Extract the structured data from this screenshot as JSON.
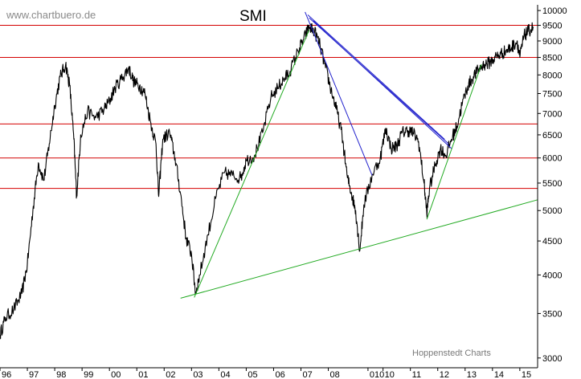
{
  "watermark": "www.chartbuero.de",
  "credit": "Hoppenstedt Charts",
  "chart_data": {
    "type": "line",
    "title": "SMI",
    "xlabel": "",
    "ylabel": "",
    "y_scale": "log",
    "ylim": [
      2900,
      10200
    ],
    "xlim": [
      1996.0,
      2015.65
    ],
    "grid": false,
    "y_ticks": [
      10000,
      9500,
      9000,
      8500,
      8000,
      7500,
      7000,
      6500,
      6000,
      5500,
      5000,
      4500,
      4000,
      3500,
      3000
    ],
    "y_tick_labels": [
      "10000",
      "9500",
      "9000",
      "8500",
      "8000",
      "7500",
      "7000",
      "6500",
      "6000",
      "5500",
      "5000",
      "4500",
      "4000",
      "3500",
      "3000"
    ],
    "x_tick_labels": [
      {
        "label": "96",
        "x": 1996.0
      },
      {
        "label": "97",
        "x": 1997.0
      },
      {
        "label": "98",
        "x": 1998.0
      },
      {
        "label": "99",
        "x": 1999.0
      },
      {
        "label": "00",
        "x": 2000.0
      },
      {
        "label": "01",
        "x": 2001.0
      },
      {
        "label": "02",
        "x": 2002.0
      },
      {
        "label": "03",
        "x": 2003.0
      },
      {
        "label": "04",
        "x": 2004.0
      },
      {
        "label": "05",
        "x": 2005.0
      },
      {
        "label": "06",
        "x": 2006.0
      },
      {
        "label": "07",
        "x": 2007.0
      },
      {
        "label": "08",
        "x": 2008.0
      },
      {
        "label": "010",
        "x": 2009.45
      },
      {
        "label": "10",
        "x": 2010.0
      },
      {
        "label": "11",
        "x": 2011.0
      },
      {
        "label": "12",
        "x": 2012.0
      },
      {
        "label": "13",
        "x": 2013.0
      },
      {
        "label": "14",
        "x": 2014.0
      },
      {
        "label": "15",
        "x": 2015.0
      }
    ],
    "series": [
      {
        "x": [
          1996.0,
          1996.2,
          1996.5,
          1996.8,
          1997.0,
          1997.2,
          1997.4,
          1997.6,
          1997.8,
          1998.0,
          1998.2,
          1998.4,
          1998.55,
          1998.7,
          1998.8,
          1998.95,
          1999.2,
          1999.5,
          1999.8,
          2000.0,
          2000.2,
          2000.5,
          2000.7,
          2000.9,
          2001.1,
          2001.3,
          2001.5,
          2001.7,
          2001.8,
          2001.95,
          2002.2,
          2002.4,
          2002.6,
          2002.8,
          2003.0,
          2003.15,
          2003.3,
          2003.6,
          2003.9,
          2004.2,
          2004.5,
          2004.8,
          2005.0,
          2005.3,
          2005.6,
          2005.9,
          2006.2,
          2006.4,
          2006.6,
          2006.9,
          2007.1,
          2007.3,
          2007.5,
          2007.7,
          2007.9,
          2008.1,
          2008.3,
          2008.5,
          2008.7,
          2008.85,
          2009.0,
          2009.15,
          2009.3,
          2009.6,
          2009.9,
          2010.1,
          2010.3,
          2010.5,
          2010.7,
          2010.9,
          2011.1,
          2011.3,
          2011.5,
          2011.6,
          2011.7,
          2011.9,
          2012.1,
          2012.3,
          2012.5,
          2012.7,
          2012.9,
          2013.1,
          2013.3,
          2013.5,
          2013.7,
          2013.9,
          2014.1,
          2014.3,
          2014.5,
          2014.7,
          2014.9,
          2015.0,
          2015.15,
          2015.3,
          2015.5
        ],
        "values": [
          3250,
          3450,
          3550,
          3750,
          4150,
          5000,
          5900,
          5550,
          6300,
          7200,
          7950,
          8300,
          7700,
          6400,
          5250,
          6500,
          7050,
          6900,
          7100,
          7300,
          7650,
          7950,
          8200,
          7800,
          7700,
          7500,
          6800,
          6300,
          5250,
          6400,
          6550,
          6000,
          5300,
          4550,
          4300,
          3750,
          4000,
          4600,
          5250,
          5700,
          5650,
          5600,
          5950,
          6050,
          6550,
          7400,
          7700,
          7900,
          8100,
          8700,
          9050,
          9450,
          9300,
          8850,
          8200,
          7600,
          7100,
          6500,
          5600,
          5300,
          5000,
          4350,
          5100,
          5650,
          6000,
          6650,
          6200,
          6250,
          6550,
          6600,
          6550,
          6350,
          5500,
          4950,
          5400,
          5850,
          6200,
          6050,
          6400,
          6700,
          7250,
          7700,
          7950,
          8150,
          8300,
          8350,
          8500,
          8600,
          8700,
          8800,
          9000,
          8500,
          9150,
          9300,
          9450
        ]
      }
    ],
    "horizontal_lines": [
      {
        "y": 9500,
        "color": "#d40000"
      },
      {
        "y": 8500,
        "color": "#d40000"
      },
      {
        "y": 6750,
        "color": "#d40000"
      },
      {
        "y": 6000,
        "color": "#d40000"
      },
      {
        "y": 5400,
        "color": "#d40000"
      }
    ],
    "trendlines": [
      {
        "color": "#22aa22",
        "from": [
          2002.6,
          3690
        ],
        "to": [
          2015.65,
          5190
        ]
      },
      {
        "color": "#22aa22",
        "from": [
          2003.1,
          3700
        ],
        "to": [
          2007.3,
          9350
        ]
      },
      {
        "color": "#22aa22",
        "from": [
          2011.6,
          4850
        ],
        "to": [
          2013.6,
          8300
        ]
      },
      {
        "color": "#2222cc",
        "from": [
          2007.15,
          9950
        ],
        "to": [
          2009.6,
          5650
        ]
      },
      {
        "color": "#2222cc",
        "from": [
          2007.25,
          9850
        ],
        "to": [
          2012.25,
          6400
        ]
      },
      {
        "color": "#2222cc",
        "from": [
          2007.3,
          9750
        ],
        "to": [
          2012.4,
          6300
        ]
      },
      {
        "color": "#2222cc",
        "from": [
          2007.45,
          9650
        ],
        "to": [
          2012.5,
          6200
        ]
      }
    ]
  }
}
